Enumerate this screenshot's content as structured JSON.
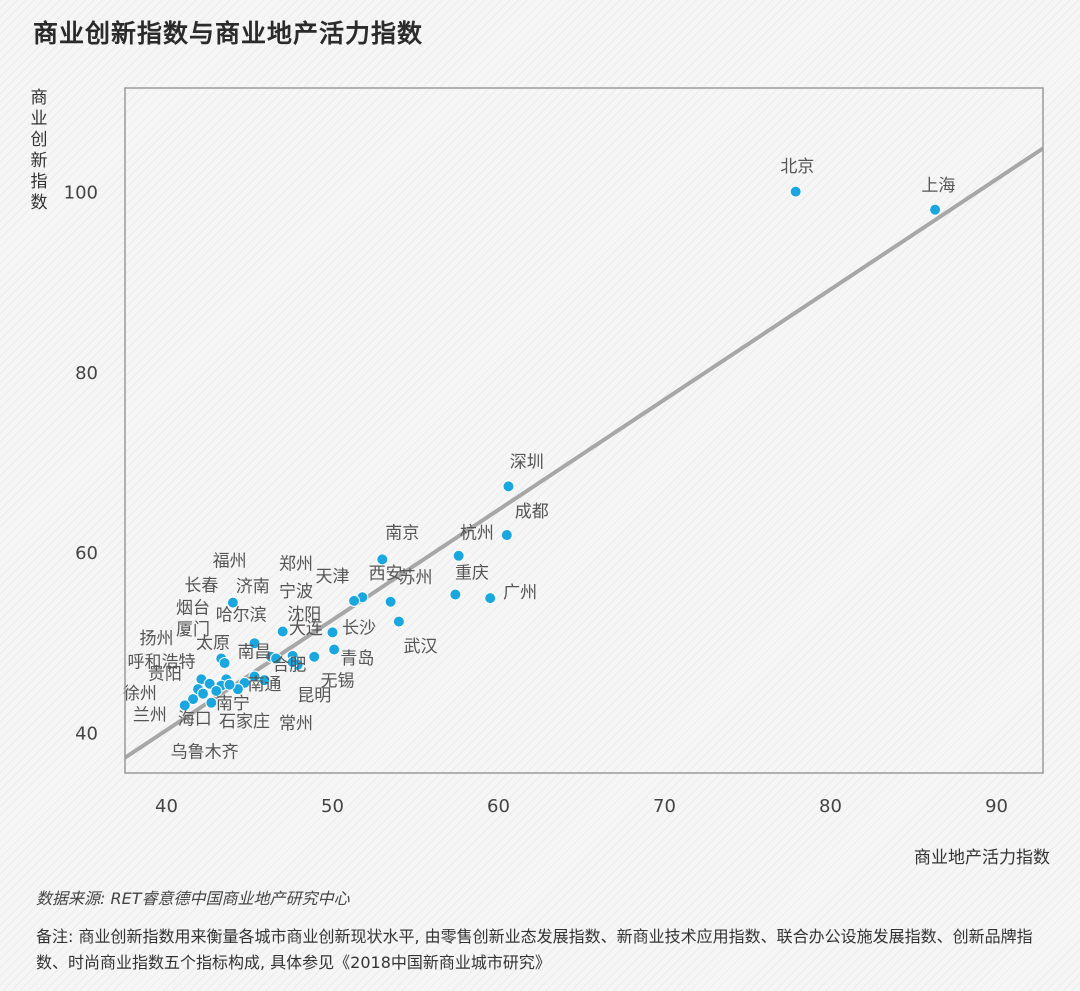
{
  "header": {
    "title": "商业创新指数与商业地产活力指数"
  },
  "axes": {
    "ylabel": "商业创新指数",
    "xlabel": "商业地产活力指数"
  },
  "footer": {
    "source": "数据来源: RET睿意德中国商业地产研究中心",
    "note": "备注: 商业创新指数用来衡量各城市商业创新现状水平, 由零售创新业态发展指数、新商业技术应用指数、联合办公设施发展指数、创新品牌指数、时尚商业指数五个指标构成, 具体参见《2018中国新商业城市研究》"
  },
  "colors": {
    "point": "#1aa6df",
    "trend": "#a7a7a7",
    "frame": "#9a9a9a"
  },
  "chart_data": {
    "type": "scatter",
    "title": "商业创新指数与商业地产活力指数",
    "xlabel": "商业地产活力指数",
    "ylabel": "商业创新指数",
    "xlim": [
      37.5,
      92.8
    ],
    "ylim": [
      35.5,
      111.5
    ],
    "xticks": [
      40,
      50,
      60,
      70,
      80,
      90
    ],
    "yticks": [
      40,
      60,
      80,
      100
    ],
    "grid": false,
    "trendline": {
      "x": [
        37.5,
        92.8
      ],
      "y": [
        37.2,
        104.8
      ]
    },
    "points": [
      {
        "label": "北京",
        "x": 77.9,
        "y": 100.0
      },
      {
        "label": "上海",
        "x": 86.3,
        "y": 98.0
      },
      {
        "label": "深圳",
        "x": 60.6,
        "y": 67.3
      },
      {
        "label": "成都",
        "x": 60.5,
        "y": 61.9
      },
      {
        "label": "杭州",
        "x": 57.6,
        "y": 59.6
      },
      {
        "label": "南京",
        "x": 53.0,
        "y": 59.2
      },
      {
        "label": "重庆",
        "x": 57.4,
        "y": 55.3
      },
      {
        "label": "广州",
        "x": 59.5,
        "y": 54.9
      },
      {
        "label": "苏州",
        "x": 53.5,
        "y": 54.5
      },
      {
        "label": "西安",
        "x": 51.8,
        "y": 55.0
      },
      {
        "label": "天津",
        "x": 51.3,
        "y": 54.6
      },
      {
        "label": "武汉",
        "x": 54.0,
        "y": 52.3
      },
      {
        "label": "长沙",
        "x": 50.0,
        "y": 51.1
      },
      {
        "label": "青岛",
        "x": 50.1,
        "y": 49.2
      },
      {
        "label": "大连",
        "x": 48.9,
        "y": 48.4
      },
      {
        "label": "福州",
        "x": 44.0,
        "y": 54.4
      },
      {
        "label": "郑州",
        "x": 47.0,
        "y": 51.2
      },
      {
        "label": "长春",
        "x": 45.3,
        "y": 49.9
      },
      {
        "label": "济南",
        "x": 47.6,
        "y": 48.5
      },
      {
        "label": "宁波",
        "x": 47.9,
        "y": 47.5
      },
      {
        "label": "沈阳",
        "x": 46.3,
        "y": 48.4
      },
      {
        "label": "无锡",
        "x": 47.6,
        "y": 47.8
      },
      {
        "label": "烟台",
        "x": 43.3,
        "y": 48.2
      },
      {
        "label": "哈尔滨",
        "x": 43.5,
        "y": 47.7
      },
      {
        "label": "厦门",
        "x": 46.6,
        "y": 48.2
      },
      {
        "label": "合肥",
        "x": 45.9,
        "y": 45.8
      },
      {
        "label": "昆明",
        "x": 45.3,
        "y": 46.2
      },
      {
        "label": "南昌",
        "x": 44.7,
        "y": 45.5
      },
      {
        "label": "太原",
        "x": 43.6,
        "y": 45.9
      },
      {
        "label": "扬州",
        "x": 42.1,
        "y": 45.9
      },
      {
        "label": "常州",
        "x": 44.3,
        "y": 44.8
      },
      {
        "label": "南通",
        "x": 43.3,
        "y": 45.2
      },
      {
        "label": "呼和浩特",
        "x": 42.6,
        "y": 45.4
      },
      {
        "label": "贵阳",
        "x": 41.9,
        "y": 44.8
      },
      {
        "label": "南宁",
        "x": 43.0,
        "y": 44.6
      },
      {
        "label": "石家庄",
        "x": 43.8,
        "y": 45.3
      },
      {
        "label": "徐州",
        "x": 42.2,
        "y": 44.3
      },
      {
        "label": "海口",
        "x": 41.6,
        "y": 43.7
      },
      {
        "label": "兰州",
        "x": 42.7,
        "y": 43.3
      },
      {
        "label": "乌鲁木齐",
        "x": 41.1,
        "y": 43.0
      }
    ],
    "annotations": [
      {
        "text": "北京",
        "x": 78.0,
        "y": 102.2
      },
      {
        "text": "上海",
        "x": 86.5,
        "y": 100.1
      },
      {
        "text": "深圳",
        "x": 61.7,
        "y": 69.4
      },
      {
        "text": "成都",
        "x": 62.0,
        "y": 63.9
      },
      {
        "text": "杭州",
        "x": 58.7,
        "y": 61.5
      },
      {
        "text": "南京",
        "x": 54.2,
        "y": 61.5
      },
      {
        "text": "重庆",
        "x": 58.4,
        "y": 57.1
      },
      {
        "text": "广州",
        "x": 61.3,
        "y": 54.9
      },
      {
        "text": "苏州",
        "x": 55.0,
        "y": 56.6
      },
      {
        "text": "西安",
        "x": 53.2,
        "y": 57.0
      },
      {
        "text": "天津",
        "x": 50.0,
        "y": 56.7
      },
      {
        "text": "武汉",
        "x": 55.3,
        "y": 48.9
      },
      {
        "text": "长沙",
        "x": 51.6,
        "y": 51.0
      },
      {
        "text": "青岛",
        "x": 51.5,
        "y": 47.6
      },
      {
        "text": "大连",
        "x": 48.4,
        "y": 50.9
      },
      {
        "text": "福州",
        "x": 43.8,
        "y": 58.4
      },
      {
        "text": "郑州",
        "x": 47.8,
        "y": 58.1
      },
      {
        "text": "长春",
        "x": 42.1,
        "y": 55.7
      },
      {
        "text": "济南",
        "x": 45.2,
        "y": 55.6
      },
      {
        "text": "宁波",
        "x": 47.8,
        "y": 55.0
      },
      {
        "text": "沈阳",
        "x": 48.3,
        "y": 52.5
      },
      {
        "text": "无锡",
        "x": 50.3,
        "y": 45.1
      },
      {
        "text": "烟台",
        "x": 41.6,
        "y": 53.2
      },
      {
        "text": "哈尔滨",
        "x": 44.5,
        "y": 52.4
      },
      {
        "text": "厦门",
        "x": 41.6,
        "y": 50.8
      },
      {
        "text": "合肥",
        "x": 47.4,
        "y": 46.9
      },
      {
        "text": "昆明",
        "x": 48.9,
        "y": 43.5
      },
      {
        "text": "南昌",
        "x": 45.3,
        "y": 48.3
      },
      {
        "text": "太原",
        "x": 42.8,
        "y": 49.3
      },
      {
        "text": "扬州",
        "x": 39.4,
        "y": 49.8
      },
      {
        "text": "常州",
        "x": 47.8,
        "y": 40.4
      },
      {
        "text": "南通",
        "x": 45.9,
        "y": 44.7
      },
      {
        "text": "呼和浩特",
        "x": 39.7,
        "y": 47.2
      },
      {
        "text": "贵阳",
        "x": 39.9,
        "y": 45.9
      },
      {
        "text": "南宁",
        "x": 44.0,
        "y": 42.6
      },
      {
        "text": "石家庄",
        "x": 44.7,
        "y": 40.6
      },
      {
        "text": "徐州",
        "x": 38.4,
        "y": 43.7
      },
      {
        "text": "海口",
        "x": 41.7,
        "y": 40.9
      },
      {
        "text": "兰州",
        "x": 39.0,
        "y": 41.3
      },
      {
        "text": "乌鲁木齐",
        "x": 42.3,
        "y": 37.2
      }
    ]
  }
}
